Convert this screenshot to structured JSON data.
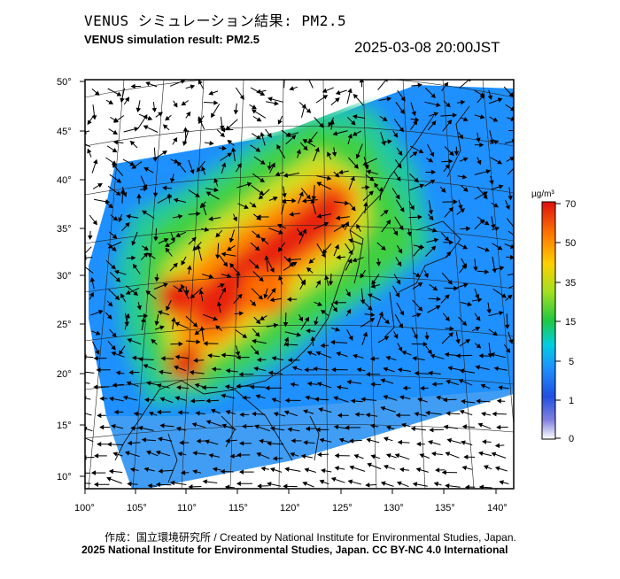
{
  "header": {
    "title_jp": "VENUS シミュレーション結果: PM2.5",
    "title_en": "VENUS simulation result: PM2.5",
    "timestamp": "2025-03-08 20:00JST"
  },
  "map": {
    "lon_ticks": [
      "100°",
      "105°",
      "110°",
      "115°",
      "120°",
      "125°",
      "130°",
      "135°",
      "140°"
    ],
    "lat_ticks": [
      "50°",
      "45°",
      "40°",
      "35°",
      "30°",
      "25°",
      "20°",
      "15°",
      "10°"
    ]
  },
  "colorbar": {
    "unit": "µg/m³",
    "labels": [
      "70",
      "50",
      "35",
      "15",
      "5",
      "1",
      "0"
    ],
    "colors": [
      "#ffffff",
      "#2040d0",
      "#1e90ff",
      "#00d8d8",
      "#20c840",
      "#90e020",
      "#ffd000",
      "#ff8000",
      "#e01010"
    ]
  },
  "footer": {
    "credit_jp": "作成：国立環境研究所 / Created by National Institute for Environmental Studies, Japan.",
    "copyright": "2025 National Institute for Environmental Studies, Japan. CC BY-NC 4.0 International"
  }
}
